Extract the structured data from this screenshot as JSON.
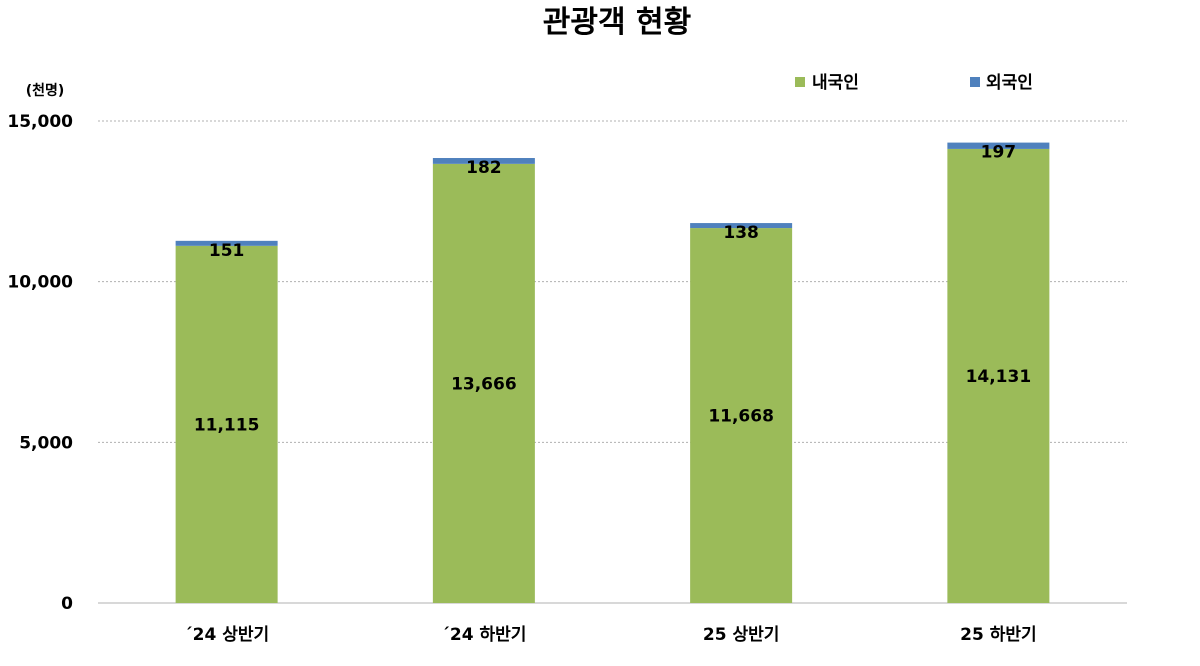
{
  "chart_data": {
    "type": "bar",
    "stacked": true,
    "title": "관광객 현황",
    "unit_label": "(천명)",
    "categories": [
      "´24 상반기",
      "´24 하반기",
      "25 상반기",
      "25 하반기"
    ],
    "series": [
      {
        "name": "내국인",
        "values": [
          11115,
          13666,
          11668,
          14131
        ],
        "color": "#9bbb59",
        "labels": [
          "11,115",
          "13,666",
          "11,668",
          "14,131"
        ]
      },
      {
        "name": "외국인",
        "values": [
          151,
          182,
          138,
          197
        ],
        "color": "#4f81bd",
        "labels": [
          "151",
          "182",
          "138",
          "197"
        ]
      }
    ],
    "ylim": [
      0,
      15000
    ],
    "yticks": [
      0,
      5000,
      10000,
      15000
    ],
    "ytick_labels": [
      "0",
      "5,000",
      "10,000",
      "15,000"
    ],
    "grid": true,
    "legend_position": "top-right"
  }
}
